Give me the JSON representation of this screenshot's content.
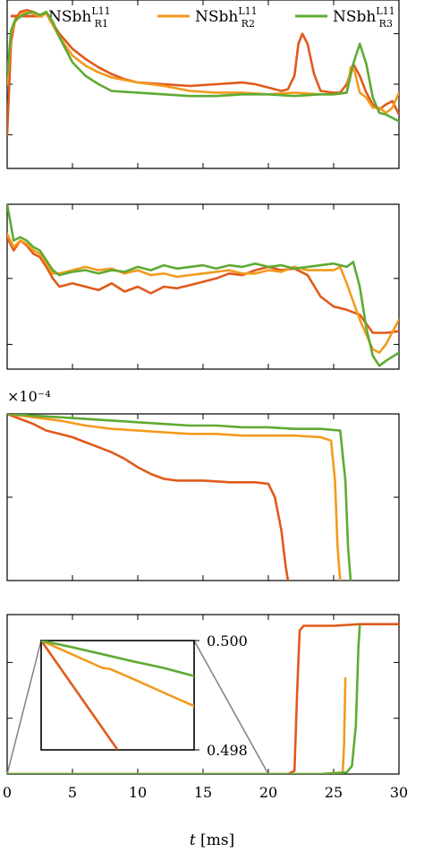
{
  "legend": {
    "entries": [
      {
        "base": "NSbh",
        "sup": "L11",
        "sub": "R1",
        "color": "#e05a1b"
      },
      {
        "base": "NSbh",
        "sup": "L11",
        "sub": "R2",
        "color": "#f39a1e"
      },
      {
        "base": "NSbh",
        "sup": "L11",
        "sub": "R3",
        "color": "#5faa34"
      }
    ]
  },
  "colors": {
    "R1": "#e05a1b",
    "R2": "#f39a1e",
    "R3": "#5faa34",
    "inset_link": "#808080"
  },
  "xaxis": {
    "label_italic": "t",
    "label_rest": " [ms]",
    "ticks": [
      0,
      5,
      10,
      15,
      20,
      25,
      30
    ],
    "tick_labels": [
      "0",
      "5",
      "10",
      "15",
      "20",
      "25",
      "30"
    ]
  },
  "chart_data": [
    {
      "type": "line",
      "panel": 1,
      "xlim": [
        0,
        30
      ],
      "ylim": [
        0,
        1
      ],
      "ylabel": "",
      "yticks": [
        0.2,
        0.5,
        0.8
      ],
      "series": [
        {
          "name": "NSbh R1",
          "color": "#e05a1b",
          "x": [
            0,
            0.3,
            0.6,
            1,
            1.5,
            2,
            2.5,
            3,
            3.5,
            4,
            5,
            6,
            7,
            8,
            9,
            10,
            12,
            14,
            16,
            18,
            19,
            20,
            21,
            21.5,
            22,
            22.3,
            22.6,
            23,
            23.5,
            24,
            25,
            25.5,
            26,
            26.5,
            27,
            27.5,
            28,
            28.5,
            29,
            29.5,
            30
          ],
          "y": [
            0.2,
            0.75,
            0.88,
            0.93,
            0.94,
            0.93,
            0.91,
            0.92,
            0.86,
            0.8,
            0.71,
            0.65,
            0.6,
            0.56,
            0.53,
            0.51,
            0.5,
            0.49,
            0.5,
            0.51,
            0.5,
            0.48,
            0.46,
            0.47,
            0.55,
            0.74,
            0.8,
            0.74,
            0.56,
            0.46,
            0.45,
            0.45,
            0.5,
            0.62,
            0.55,
            0.45,
            0.38,
            0.35,
            0.38,
            0.4,
            0.32
          ]
        },
        {
          "name": "NSbh R2",
          "color": "#f39a1e",
          "x": [
            0,
            0.3,
            0.6,
            1,
            1.5,
            2,
            2.5,
            3,
            3.5,
            4,
            5,
            6,
            7,
            8,
            10,
            12,
            14,
            16,
            18,
            20,
            22,
            24,
            25,
            26,
            26.3,
            26.6,
            27,
            27.5,
            28,
            28.5,
            29,
            29.5,
            30
          ],
          "y": [
            0.5,
            0.8,
            0.87,
            0.91,
            0.93,
            0.92,
            0.9,
            0.92,
            0.85,
            0.78,
            0.67,
            0.61,
            0.57,
            0.54,
            0.51,
            0.49,
            0.46,
            0.45,
            0.45,
            0.44,
            0.45,
            0.44,
            0.44,
            0.45,
            0.6,
            0.58,
            0.45,
            0.42,
            0.36,
            0.36,
            0.33,
            0.36,
            0.45
          ]
        },
        {
          "name": "NSbh R3",
          "color": "#5faa34",
          "x": [
            0,
            0.3,
            0.6,
            1,
            1.5,
            2,
            2.5,
            3,
            3.5,
            4,
            5,
            6,
            7,
            8,
            10,
            12,
            14,
            16,
            18,
            20,
            22,
            24,
            25,
            26,
            26.5,
            27,
            27.5,
            28,
            28.5,
            29,
            29.5,
            30
          ],
          "y": [
            0.55,
            0.82,
            0.88,
            0.9,
            0.92,
            0.93,
            0.91,
            0.93,
            0.87,
            0.78,
            0.63,
            0.55,
            0.5,
            0.46,
            0.45,
            0.44,
            0.43,
            0.43,
            0.44,
            0.44,
            0.43,
            0.44,
            0.44,
            0.45,
            0.62,
            0.74,
            0.62,
            0.42,
            0.33,
            0.32,
            0.3,
            0.28
          ]
        }
      ]
    },
    {
      "type": "line",
      "panel": 2,
      "xlim": [
        0,
        30
      ],
      "ylim": [
        0,
        1
      ],
      "ylabel": "",
      "yticks": [
        0.15,
        0.55
      ],
      "series": [
        {
          "name": "NSbh R1",
          "color": "#e05a1b",
          "x": [
            0,
            0.5,
            1,
            1.5,
            2,
            2.5,
            3,
            3.5,
            4,
            5,
            6,
            7,
            8,
            9,
            10,
            11,
            12,
            13,
            14,
            15,
            16,
            17,
            18,
            19,
            20,
            21,
            22,
            23,
            24,
            25,
            26,
            27,
            28,
            29,
            30
          ],
          "y": [
            0.8,
            0.72,
            0.78,
            0.75,
            0.7,
            0.68,
            0.62,
            0.55,
            0.5,
            0.52,
            0.5,
            0.48,
            0.52,
            0.47,
            0.5,
            0.46,
            0.5,
            0.49,
            0.51,
            0.53,
            0.55,
            0.58,
            0.57,
            0.6,
            0.62,
            0.6,
            0.61,
            0.57,
            0.44,
            0.38,
            0.36,
            0.33,
            0.22,
            0.22,
            0.23
          ]
        },
        {
          "name": "NSbh R2",
          "color": "#f39a1e",
          "x": [
            0,
            0.5,
            1,
            1.5,
            2,
            2.5,
            3,
            3.5,
            4,
            5,
            6,
            7,
            8,
            9,
            10,
            11,
            12,
            13,
            14,
            15,
            16,
            17,
            18,
            19,
            20,
            21,
            22,
            23,
            24,
            25,
            25.5,
            26,
            27,
            28,
            28.5,
            29,
            30
          ],
          "y": [
            0.82,
            0.74,
            0.78,
            0.76,
            0.72,
            0.7,
            0.64,
            0.58,
            0.58,
            0.6,
            0.62,
            0.6,
            0.61,
            0.58,
            0.6,
            0.57,
            0.58,
            0.56,
            0.57,
            0.58,
            0.59,
            0.6,
            0.58,
            0.58,
            0.6,
            0.59,
            0.62,
            0.6,
            0.6,
            0.6,
            0.62,
            0.52,
            0.3,
            0.12,
            0.1,
            0.15,
            0.3
          ]
        },
        {
          "name": "NSbh R3",
          "color": "#5faa34",
          "x": [
            0,
            0.5,
            1,
            1.5,
            2,
            2.5,
            3,
            3.5,
            4,
            5,
            6,
            7,
            8,
            9,
            10,
            11,
            12,
            13,
            14,
            15,
            16,
            17,
            18,
            19,
            20,
            21,
            22,
            23,
            24,
            25,
            26,
            26.5,
            27,
            27.5,
            28,
            28.5,
            29,
            30
          ],
          "y": [
            1.0,
            0.78,
            0.8,
            0.78,
            0.74,
            0.72,
            0.66,
            0.6,
            0.57,
            0.59,
            0.6,
            0.58,
            0.6,
            0.59,
            0.62,
            0.6,
            0.63,
            0.61,
            0.62,
            0.63,
            0.61,
            0.63,
            0.62,
            0.64,
            0.62,
            0.63,
            0.61,
            0.62,
            0.63,
            0.64,
            0.62,
            0.65,
            0.5,
            0.25,
            0.08,
            0.02,
            0.05,
            0.1
          ]
        }
      ]
    },
    {
      "type": "line",
      "panel": 3,
      "xlim": [
        0,
        30
      ],
      "ylim": [
        0,
        1
      ],
      "ylabel": "",
      "yscale_label": "×10⁻⁴",
      "yticks": [
        0.0,
        0.5
      ],
      "series": [
        {
          "name": "NSbh R1",
          "color": "#e05a1b",
          "x": [
            0,
            1,
            2,
            3,
            4,
            5,
            6,
            7,
            8,
            9,
            10,
            11,
            12,
            13,
            15,
            17,
            19,
            20,
            20.5,
            21,
            21.3,
            21.5
          ],
          "y": [
            1.0,
            0.97,
            0.94,
            0.9,
            0.88,
            0.86,
            0.83,
            0.8,
            0.77,
            0.73,
            0.68,
            0.64,
            0.61,
            0.6,
            0.6,
            0.59,
            0.59,
            0.58,
            0.5,
            0.3,
            0.1,
            0.0
          ]
        },
        {
          "name": "NSbh R2",
          "color": "#f39a1e",
          "x": [
            0,
            2,
            4,
            6,
            8,
            10,
            12,
            14,
            16,
            18,
            20,
            22,
            24,
            24.8,
            25.1,
            25.3,
            25.5
          ],
          "y": [
            1.0,
            0.98,
            0.96,
            0.93,
            0.91,
            0.9,
            0.89,
            0.88,
            0.88,
            0.87,
            0.87,
            0.87,
            0.86,
            0.84,
            0.6,
            0.2,
            0.0
          ]
        },
        {
          "name": "NSbh R3",
          "color": "#5faa34",
          "x": [
            0,
            2,
            4,
            6,
            8,
            10,
            12,
            14,
            16,
            18,
            20,
            22,
            24,
            25.5,
            25.9,
            26.1,
            26.3
          ],
          "y": [
            1.0,
            0.99,
            0.98,
            0.97,
            0.96,
            0.95,
            0.94,
            0.93,
            0.93,
            0.92,
            0.92,
            0.91,
            0.91,
            0.9,
            0.6,
            0.2,
            0.0
          ]
        }
      ]
    },
    {
      "type": "line",
      "panel": 4,
      "xlim": [
        0,
        30
      ],
      "ylim": [
        0,
        1
      ],
      "ylabel": "",
      "yticks": [
        0.0,
        0.35,
        0.7
      ],
      "series": [
        {
          "name": "NSbh R1",
          "color": "#e05a1b",
          "x": [
            0,
            5,
            10,
            15,
            20,
            21.5,
            22,
            22.2,
            22.4,
            22.7,
            23,
            25,
            27,
            30
          ],
          "y": [
            0.0,
            0.0,
            0.0,
            0.0,
            0.0,
            0.0,
            0.02,
            0.5,
            0.9,
            0.93,
            0.93,
            0.93,
            0.94,
            0.94
          ]
        },
        {
          "name": "NSbh R2",
          "color": "#f39a1e",
          "x": [
            0,
            5,
            10,
            15,
            20,
            24,
            25.7,
            25.8,
            25.9
          ],
          "y": [
            0.0,
            0.0,
            0.0,
            0.0,
            0.0,
            0.0,
            0.01,
            0.2,
            0.6
          ]
        },
        {
          "name": "NSbh R3",
          "color": "#5faa34",
          "x": [
            0,
            5,
            10,
            15,
            20,
            24,
            26,
            26.4,
            26.7,
            26.9,
            27
          ],
          "y": [
            0.0,
            0.0,
            0.0,
            0.0,
            0.0,
            0.0,
            0.01,
            0.05,
            0.3,
            0.8,
            0.93
          ]
        }
      ],
      "inset": {
        "xlim": [
          0,
          1
        ],
        "ylim": [
          0.498,
          0.5
        ],
        "ytick_labels": [
          "0.500",
          "0.498"
        ],
        "series": [
          {
            "name": "NSbh R1",
            "color": "#e05a1b",
            "x": [
              0,
              0.5
            ],
            "y": [
              0.5,
              0.498
            ]
          },
          {
            "name": "NSbh R2",
            "color": "#f39a1e",
            "x": [
              0,
              0.2,
              0.4,
              0.45,
              0.6,
              0.8,
              1.0
            ],
            "y": [
              0.5,
              0.49975,
              0.4995,
              0.49948,
              0.4993,
              0.49905,
              0.4988
            ]
          },
          {
            "name": "NSbh R3",
            "color": "#5faa34",
            "x": [
              0,
              0.2,
              0.4,
              0.6,
              0.8,
              1.0
            ],
            "y": [
              0.5,
              0.49988,
              0.49975,
              0.49962,
              0.4995,
              0.49935
            ]
          }
        ]
      }
    }
  ]
}
